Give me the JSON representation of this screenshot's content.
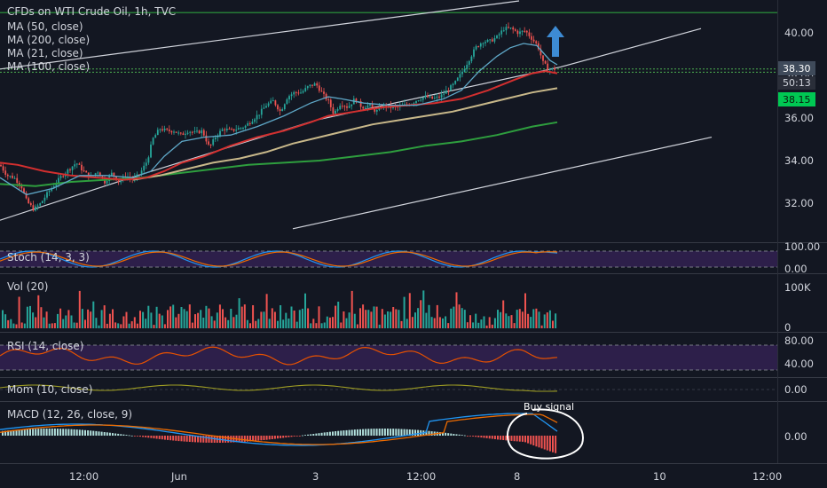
{
  "chart_data": {
    "type": "candlestick",
    "title": "CFDs on WTI Crude Oil, 1h, TVC",
    "price_panel": {
      "indicators": [
        "MA (50, close)",
        "MA (200, close)",
        "MA (21, close)",
        "MA (100, close)"
      ],
      "y_ticks": [
        "40.00",
        "38.00",
        "36.00",
        "34.00",
        "32.00"
      ],
      "ylim": [
        30.5,
        41.5
      ],
      "last_price": "38.30",
      "countdown": "50:13",
      "ma_value": "38.15",
      "horizontal_level": 40.95,
      "series": {
        "price_close": [
          [
            0,
            33.8
          ],
          [
            8,
            33.3
          ],
          [
            16,
            33.2
          ],
          [
            24,
            32.8
          ],
          [
            30,
            32.1
          ],
          [
            38,
            31.7
          ],
          [
            46,
            32.0
          ],
          [
            54,
            32.5
          ],
          [
            62,
            32.9
          ],
          [
            70,
            33.3
          ],
          [
            78,
            33.6
          ],
          [
            86,
            33.9
          ],
          [
            94,
            33.5
          ],
          [
            102,
            33.2
          ],
          [
            110,
            33.5
          ],
          [
            118,
            33.0
          ],
          [
            126,
            33.4
          ],
          [
            134,
            33.0
          ],
          [
            142,
            33.3
          ],
          [
            150,
            33.1
          ],
          [
            158,
            33.4
          ],
          [
            166,
            34.0
          ],
          [
            172,
            35.0
          ],
          [
            180,
            35.5
          ],
          [
            188,
            35.4
          ],
          [
            196,
            35.4
          ],
          [
            204,
            35.2
          ],
          [
            212,
            35.4
          ],
          [
            220,
            35.3
          ],
          [
            228,
            35.4
          ],
          [
            236,
            34.6
          ],
          [
            244,
            35.2
          ],
          [
            252,
            35.5
          ],
          [
            260,
            35.4
          ],
          [
            268,
            35.5
          ],
          [
            276,
            35.6
          ],
          [
            284,
            35.9
          ],
          [
            292,
            36.2
          ],
          [
            300,
            36.6
          ],
          [
            308,
            36.8
          ],
          [
            316,
            36.3
          ],
          [
            324,
            37.0
          ],
          [
            332,
            37.2
          ],
          [
            340,
            37.2
          ],
          [
            348,
            37.5
          ],
          [
            356,
            37.6
          ],
          [
            364,
            37.1
          ],
          [
            370,
            36.8
          ],
          [
            376,
            36.2
          ],
          [
            384,
            36.7
          ],
          [
            392,
            36.5
          ],
          [
            400,
            36.9
          ],
          [
            408,
            36.5
          ],
          [
            416,
            36.6
          ],
          [
            424,
            36.3
          ],
          [
            432,
            36.6
          ],
          [
            440,
            36.5
          ],
          [
            448,
            36.5
          ],
          [
            456,
            36.6
          ],
          [
            464,
            36.7
          ],
          [
            472,
            36.9
          ],
          [
            480,
            37.0
          ],
          [
            488,
            36.9
          ],
          [
            496,
            37.0
          ],
          [
            504,
            37.3
          ],
          [
            512,
            37.6
          ],
          [
            520,
            38.1
          ],
          [
            528,
            38.7
          ],
          [
            536,
            39.3
          ],
          [
            544,
            39.6
          ],
          [
            552,
            39.6
          ],
          [
            560,
            39.8
          ],
          [
            568,
            40.2
          ],
          [
            576,
            40.2
          ],
          [
            584,
            40.0
          ],
          [
            592,
            40.1
          ],
          [
            600,
            39.7
          ],
          [
            606,
            39.4
          ],
          [
            612,
            38.6
          ],
          [
            618,
            38.3
          ],
          [
            624,
            38.3
          ]
        ],
        "ma21": [
          [
            0,
            33.2
          ],
          [
            30,
            32.4
          ],
          [
            60,
            32.7
          ],
          [
            90,
            33.3
          ],
          [
            120,
            33.3
          ],
          [
            150,
            33.2
          ],
          [
            170,
            33.5
          ],
          [
            185,
            34.2
          ],
          [
            205,
            34.9
          ],
          [
            230,
            35.1
          ],
          [
            260,
            35.2
          ],
          [
            290,
            35.6
          ],
          [
            320,
            36.1
          ],
          [
            350,
            36.7
          ],
          [
            370,
            37.0
          ],
          [
            385,
            36.9
          ],
          [
            410,
            36.7
          ],
          [
            440,
            36.6
          ],
          [
            470,
            36.6
          ],
          [
            500,
            36.9
          ],
          [
            520,
            37.3
          ],
          [
            540,
            38.2
          ],
          [
            560,
            38.9
          ],
          [
            575,
            39.3
          ],
          [
            590,
            39.5
          ],
          [
            605,
            39.4
          ],
          [
            620,
            38.7
          ],
          [
            628,
            38.5
          ]
        ],
        "ma50": [
          [
            0,
            33.9
          ],
          [
            20,
            33.8
          ],
          [
            50,
            33.5
          ],
          [
            80,
            33.3
          ],
          [
            110,
            33.2
          ],
          [
            140,
            33.1
          ],
          [
            165,
            33.2
          ],
          [
            185,
            33.5
          ],
          [
            205,
            33.9
          ],
          [
            230,
            34.2
          ],
          [
            260,
            34.7
          ],
          [
            290,
            35.1
          ],
          [
            320,
            35.4
          ],
          [
            350,
            35.8
          ],
          [
            370,
            36.1
          ],
          [
            400,
            36.3
          ],
          [
            430,
            36.5
          ],
          [
            460,
            36.6
          ],
          [
            490,
            36.7
          ],
          [
            520,
            36.9
          ],
          [
            550,
            37.3
          ],
          [
            580,
            37.8
          ],
          [
            600,
            38.1
          ],
          [
            615,
            38.2
          ],
          [
            628,
            38.1
          ]
        ],
        "ma100": [
          [
            150,
            33.1
          ],
          [
            180,
            33.3
          ],
          [
            210,
            33.6
          ],
          [
            240,
            33.9
          ],
          [
            270,
            34.1
          ],
          [
            300,
            34.4
          ],
          [
            330,
            34.8
          ],
          [
            360,
            35.1
          ],
          [
            390,
            35.4
          ],
          [
            420,
            35.7
          ],
          [
            450,
            35.9
          ],
          [
            480,
            36.1
          ],
          [
            510,
            36.3
          ],
          [
            540,
            36.6
          ],
          [
            570,
            36.9
          ],
          [
            600,
            37.2
          ],
          [
            628,
            37.4
          ]
        ],
        "ma200": [
          [
            0,
            32.9
          ],
          [
            40,
            32.8
          ],
          [
            80,
            33.0
          ],
          [
            120,
            33.1
          ],
          [
            160,
            33.2
          ],
          [
            200,
            33.4
          ],
          [
            240,
            33.6
          ],
          [
            280,
            33.8
          ],
          [
            320,
            33.9
          ],
          [
            360,
            34.0
          ],
          [
            400,
            34.2
          ],
          [
            440,
            34.4
          ],
          [
            480,
            34.7
          ],
          [
            520,
            34.9
          ],
          [
            560,
            35.2
          ],
          [
            600,
            35.6
          ],
          [
            628,
            35.8
          ]
        ]
      },
      "trend_lines": [
        [
          [
            0,
            31.2
          ],
          [
            140,
            33.1
          ],
          [
            356,
            35.9
          ],
          [
            632,
            38.4
          ],
          [
            790,
            40.2
          ]
        ],
        [
          [
            0,
            38.3
          ],
          [
            585,
            41.5
          ]
        ],
        [
          [
            330,
            30.8
          ],
          [
            802,
            35.1
          ]
        ]
      ],
      "arrow": "up"
    },
    "stoch": {
      "label": "Stoch (14, 3, 3)",
      "y_ticks": [
        "100.00",
        "0.00"
      ]
    },
    "volume": {
      "label": "Vol (20)",
      "y_ticks": [
        "100K",
        "0"
      ]
    },
    "rsi": {
      "label": "RSI (14, close)",
      "y_ticks": [
        "80.00",
        "40.00"
      ]
    },
    "momentum": {
      "label": "Mom (10, close)",
      "y_ticks": [
        "0.00"
      ]
    },
    "macd": {
      "label": "MACD (12, 26, close, 9)",
      "y_ticks": [
        "0.00"
      ],
      "annotation": "Buy signal"
    },
    "x_ticks": [
      "12:00",
      "Jun",
      "3",
      "12:00",
      "8",
      "10",
      "12:00"
    ]
  },
  "colors": {
    "background": "#131722",
    "up": "#26a69a",
    "down": "#ef5350",
    "ma21": "#5fa8c8",
    "ma50": "#d32f2f",
    "ma100": "#c8b88a",
    "ma200": "#2e9e3e",
    "level": "#2e9e3e",
    "stoch_band": "#2d1f4a",
    "arrow": "#3d8bd4",
    "last_price_tag": "#3f4a5a",
    "ma_tag": "#00c853"
  }
}
